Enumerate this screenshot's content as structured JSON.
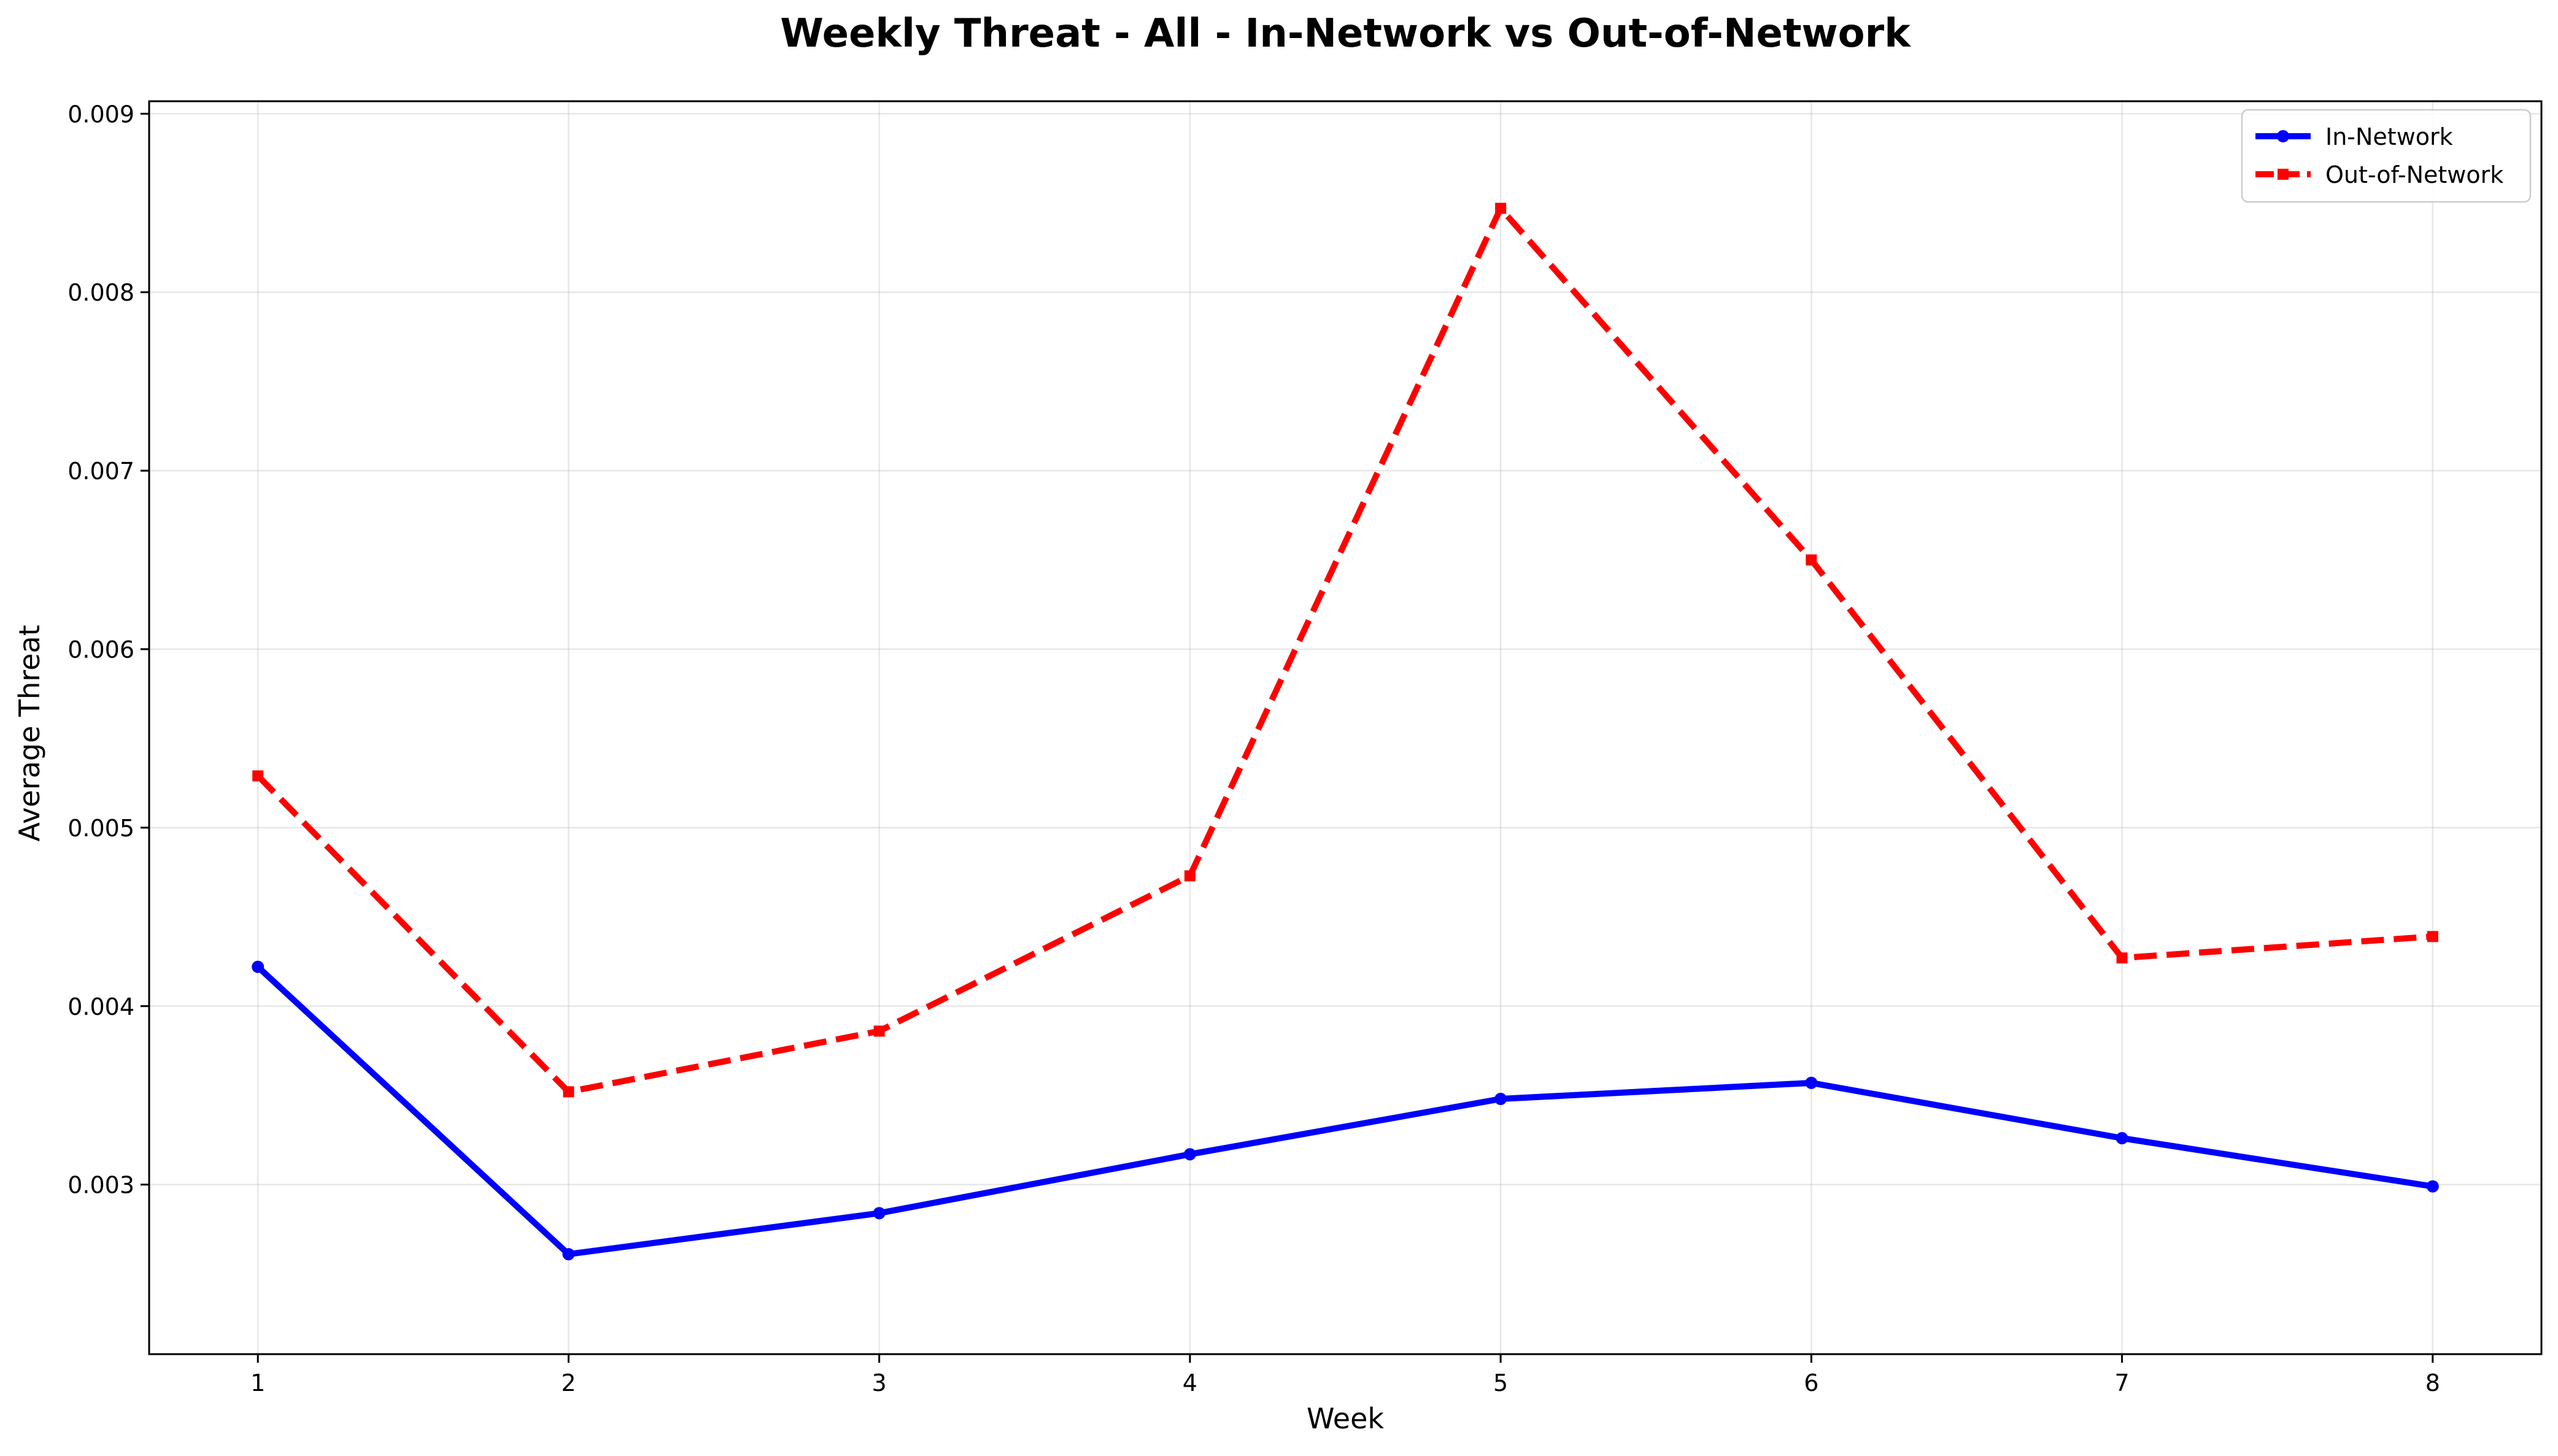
{
  "chart_data": {
    "type": "line",
    "title": "Weekly Threat - All - In-Network vs Out-of-Network",
    "xlabel": "Week",
    "ylabel": "Average Threat",
    "x": [
      1,
      2,
      3,
      4,
      5,
      6,
      7,
      8
    ],
    "xlim": [
      0.65,
      8.35
    ],
    "ylim": [
      0.00205,
      0.00907
    ],
    "yticks": [
      0.003,
      0.004,
      0.005,
      0.006,
      0.007,
      0.008,
      0.009
    ],
    "ytick_labels": [
      "0.003",
      "0.004",
      "0.005",
      "0.006",
      "0.007",
      "0.008",
      "0.009"
    ],
    "xticks": [
      1,
      2,
      3,
      4,
      5,
      6,
      7,
      8
    ],
    "xtick_labels": [
      "1",
      "2",
      "3",
      "4",
      "5",
      "6",
      "7",
      "8"
    ],
    "grid": true,
    "legend_position": "top-right",
    "series": [
      {
        "name": "In-Network",
        "values": [
          0.00422,
          0.00261,
          0.00284,
          0.00317,
          0.00348,
          0.00357,
          0.00326,
          0.00299
        ],
        "color": "#0000ff",
        "line_style": "solid",
        "marker": "circle"
      },
      {
        "name": "Out-of-Network",
        "values": [
          0.00529,
          0.00352,
          0.00386,
          0.00473,
          0.00847,
          0.0065,
          0.00427,
          0.00439
        ],
        "color": "#ff0000",
        "line_style": "dashed",
        "marker": "square"
      }
    ]
  }
}
